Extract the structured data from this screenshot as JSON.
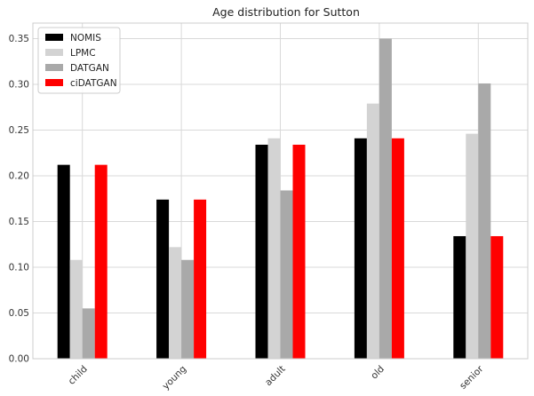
{
  "chart_data": {
    "type": "bar",
    "title": "Age distribution for Sutton",
    "xlabel": "",
    "ylabel": "",
    "categories": [
      "child",
      "young",
      "adult",
      "old",
      "senior"
    ],
    "series": [
      {
        "name": "NOMIS",
        "color": "#000000",
        "values": [
          0.212,
          0.174,
          0.234,
          0.241,
          0.134
        ]
      },
      {
        "name": "LPMC",
        "color": "#d3d3d3",
        "values": [
          0.108,
          0.122,
          0.241,
          0.279,
          0.246
        ]
      },
      {
        "name": "DATGAN",
        "color": "#a9a9a9",
        "values": [
          0.055,
          0.108,
          0.184,
          0.35,
          0.301
        ]
      },
      {
        "name": "ciDATGAN",
        "color": "#ff0000",
        "values": [
          0.212,
          0.174,
          0.234,
          0.241,
          0.134
        ]
      }
    ],
    "yticks": [
      "0.00",
      "0.05",
      "0.10",
      "0.15",
      "0.20",
      "0.25",
      "0.30",
      "0.35"
    ],
    "ylim": [
      0,
      0.367
    ],
    "grid": true,
    "legend_position": "top-left"
  }
}
